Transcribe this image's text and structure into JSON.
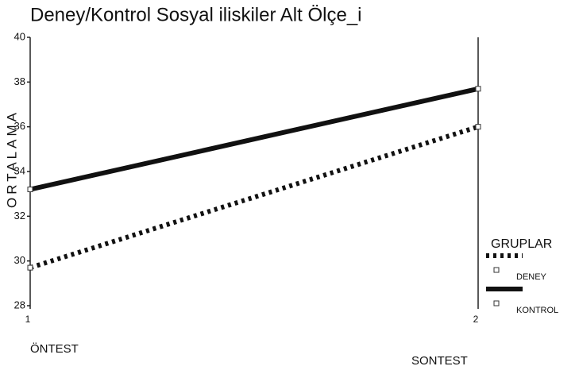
{
  "chart_data": {
    "type": "line",
    "title": "Deney/Kontrol Sosyal iliskiler Alt Ölçe_i",
    "y_label": "ORTALAMA",
    "x": [
      1,
      2
    ],
    "xlim": [
      1,
      2
    ],
    "xticks": [
      1,
      2
    ],
    "ylim": [
      28,
      40
    ],
    "yticks": [
      28,
      30,
      32,
      34,
      36,
      38,
      40
    ],
    "annotations": [
      "ÖNTEST",
      "SONTEST"
    ],
    "legend_title": "GRUPLAR",
    "legend": "right",
    "series": [
      {
        "name": "DENEY",
        "color": "#111111",
        "style": "dotted",
        "values": [
          29.7,
          36
        ]
      },
      {
        "name": "KONTROL",
        "color": "#111111",
        "style": "solid",
        "values": [
          33.2,
          37.7
        ]
      }
    ]
  }
}
